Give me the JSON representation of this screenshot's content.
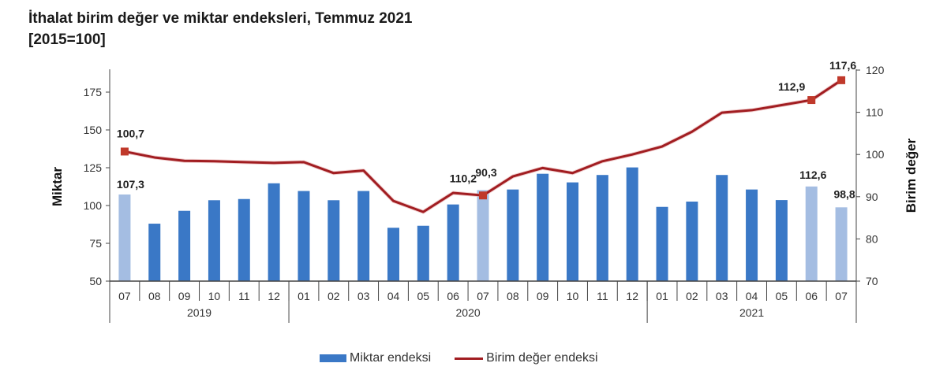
{
  "title": {
    "line1": "İthalat birim değer ve miktar endeksleri, Temmuz 2021",
    "line2": "[2015=100]"
  },
  "colors": {
    "bar": "#3a78c6",
    "bar_highlight": "#a4bde2",
    "line": "#a11d21",
    "marker": "#c0392b"
  },
  "legend": {
    "bar_label": "Miktar endeksi",
    "line_label": "Birim değer endeksi"
  },
  "chart_data": {
    "type": "bar+line",
    "title": "İthalat birim değer ve miktar endeksleri, Temmuz 2021 [2015=100]",
    "categories": [
      "07",
      "08",
      "09",
      "10",
      "11",
      "12",
      "01",
      "02",
      "03",
      "04",
      "05",
      "06",
      "07",
      "08",
      "09",
      "10",
      "11",
      "12",
      "01",
      "02",
      "03",
      "04",
      "05",
      "06",
      "07"
    ],
    "year_groups": [
      {
        "label": "2019",
        "start": 0,
        "end": 5
      },
      {
        "label": "2020",
        "start": 6,
        "end": 17
      },
      {
        "label": "2021",
        "start": 18,
        "end": 24
      }
    ],
    "highlight_bars": [
      0,
      12,
      23,
      24
    ],
    "series": [
      {
        "name": "Miktar endeksi",
        "type": "bar",
        "axis": "left",
        "values": [
          107.3,
          88.0,
          96.5,
          103.5,
          104.3,
          114.7,
          109.6,
          103.5,
          109.6,
          85.3,
          86.6,
          100.7,
          110.2,
          110.6,
          121.0,
          115.3,
          120.2,
          125.2,
          99.1,
          102.6,
          120.2,
          110.6,
          103.6,
          112.6,
          98.8
        ]
      },
      {
        "name": "Birim değer endeksi",
        "type": "line",
        "axis": "right",
        "values": [
          100.7,
          99.3,
          98.5,
          98.4,
          98.2,
          98.0,
          98.2,
          95.6,
          96.2,
          89.0,
          86.4,
          90.9,
          90.3,
          94.8,
          96.8,
          95.6,
          98.4,
          100.0,
          101.9,
          105.4,
          109.9,
          110.5,
          111.7,
          112.9,
          117.6
        ]
      }
    ],
    "data_labels": [
      {
        "series": 0,
        "index": 0,
        "text": "107,3"
      },
      {
        "series": 1,
        "index": 0,
        "text": "100,7"
      },
      {
        "series": 0,
        "index": 12,
        "text": "110,2"
      },
      {
        "series": 1,
        "index": 12,
        "text": "90,3"
      },
      {
        "series": 0,
        "index": 23,
        "text": "112,6"
      },
      {
        "series": 0,
        "index": 24,
        "text": "98,8"
      },
      {
        "series": 1,
        "index": 23,
        "text": "112,9"
      },
      {
        "series": 1,
        "index": 24,
        "text": "117,6"
      }
    ],
    "marker_points": [
      0,
      12,
      23,
      24
    ],
    "ylabel_left": "Miktar",
    "ylabel_right": "Birim değer",
    "ylim_left": [
      50,
      185
    ],
    "yticks_left": [
      50,
      75,
      100,
      125,
      150,
      175
    ],
    "ylim_right": [
      70,
      120
    ],
    "yticks_right": [
      70,
      80,
      90,
      100,
      110,
      120
    ],
    "grid": false,
    "legend_position": "bottom"
  }
}
